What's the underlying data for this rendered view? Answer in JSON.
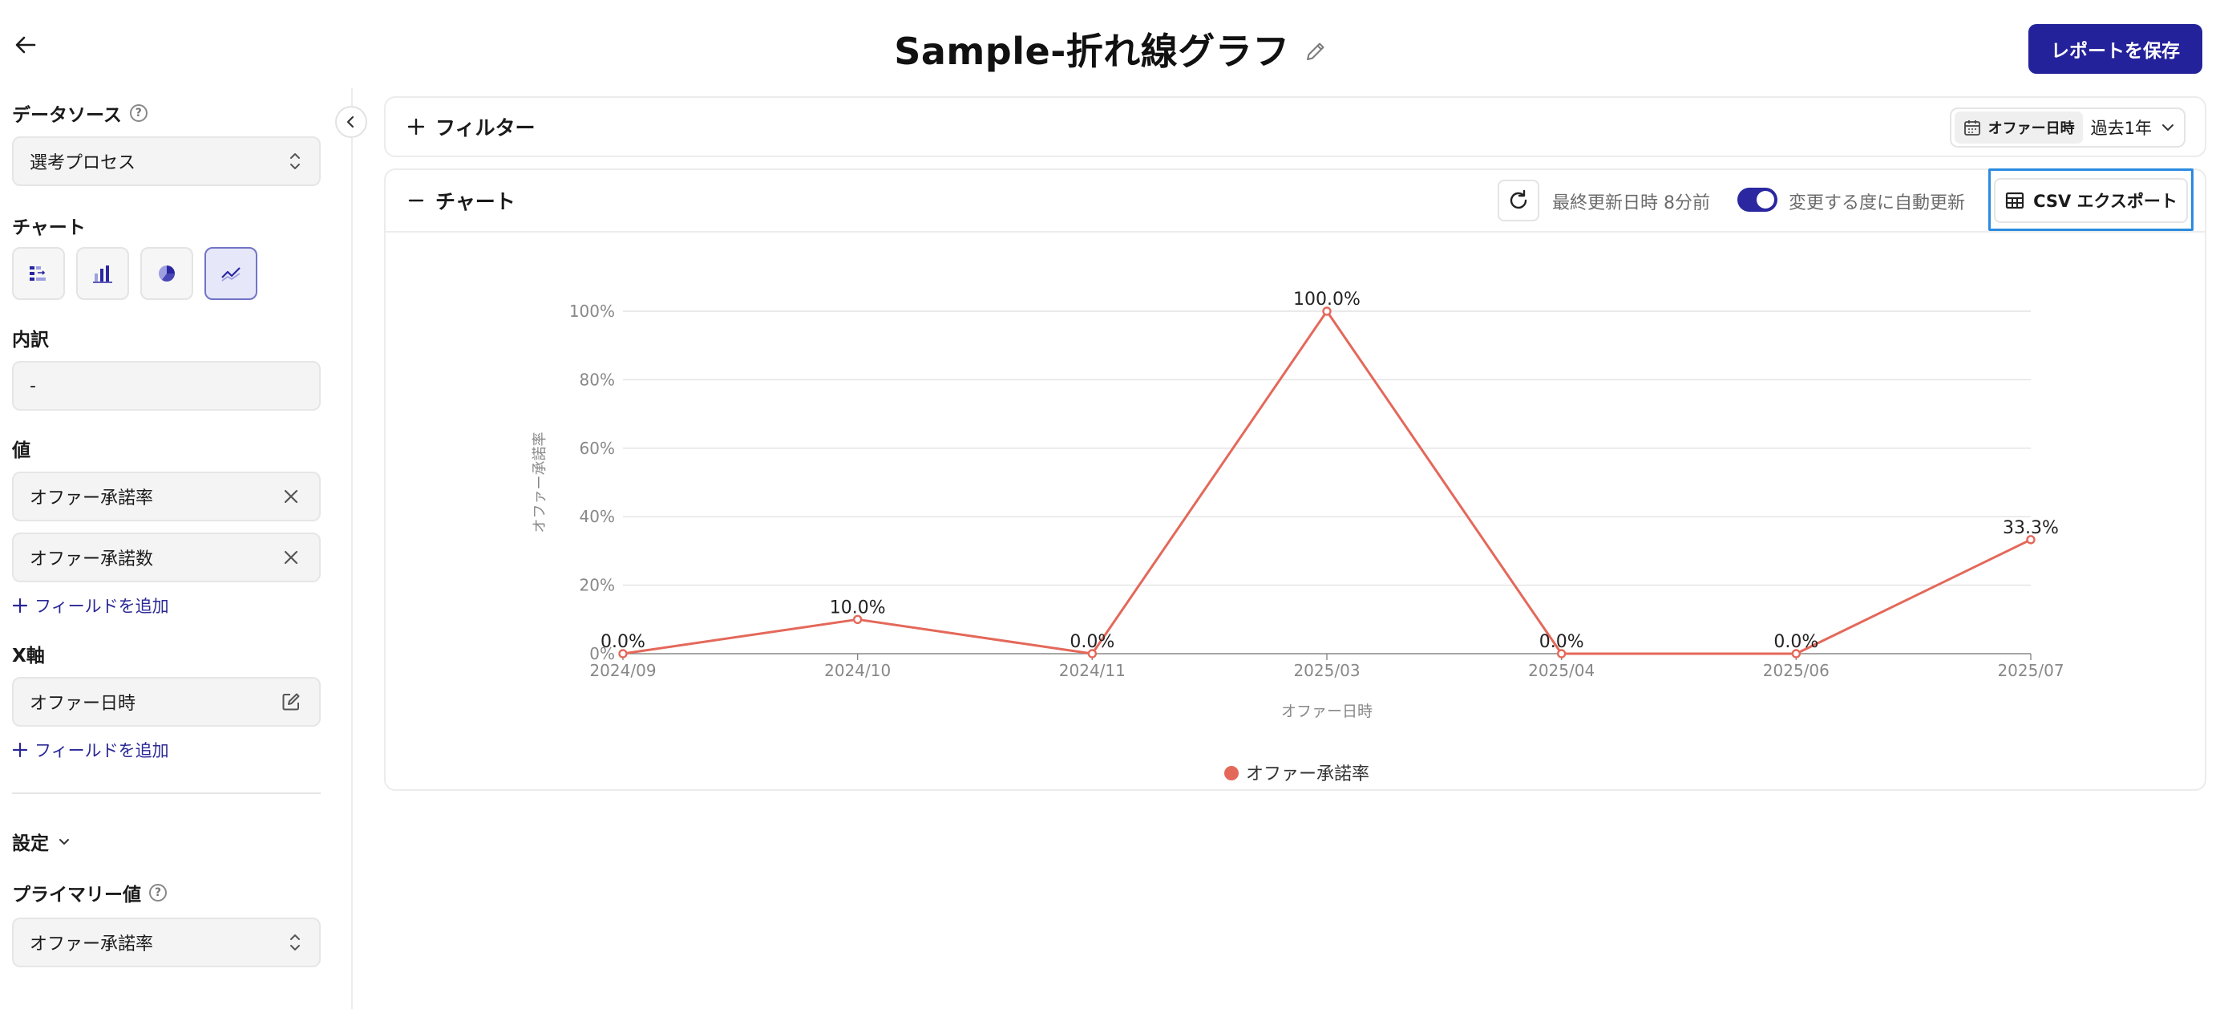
{
  "header": {
    "title": "Sample-折れ線グラフ",
    "save_label": "レポートを保存"
  },
  "sidebar": {
    "datasource_label": "データソース",
    "datasource_value": "選考プロセス",
    "chart_label": "チャート",
    "chart_types": [
      "table-chart",
      "bar-chart",
      "pie-chart",
      "line-chart"
    ],
    "active_chart_type": "line-chart",
    "breakdown_label": "内訳",
    "breakdown_value": "-",
    "values_label": "値",
    "values": [
      "オファー承諾率",
      "オファー承諾数"
    ],
    "add_field_label": "フィールドを追加",
    "xaxis_label": "X軸",
    "xaxis_value": "オファー日時",
    "settings_label": "設定",
    "primary_label": "プライマリー値",
    "primary_value": "オファー承諾率"
  },
  "filter": {
    "toggle_label": "フィルター",
    "date_field": "オファー日時",
    "date_range": "過去1年"
  },
  "chart_panel": {
    "toggle_label": "チャート",
    "last_updated": "最終更新日時 8分前",
    "auto_update": "変更する度に自動更新",
    "auto_update_on": true,
    "csv_label": "CSV エクスポート"
  },
  "colors": {
    "series": "#e4685a",
    "primary": "#24229a",
    "focus": "#2b8be0"
  },
  "chart_data": {
    "type": "line",
    "categories": [
      "2024/09",
      "2024/10",
      "2024/11",
      "2025/03",
      "2025/04",
      "2025/06",
      "2025/07"
    ],
    "series": [
      {
        "name": "オファー承諾率",
        "values": [
          0,
          10,
          0,
          100,
          0,
          0,
          33.3
        ]
      }
    ],
    "data_labels": [
      "0.0%",
      "10.0%",
      "0.0%",
      "100.0%",
      "0.0%",
      "0.0%",
      "33.3%"
    ],
    "y_ticks": [
      "0%",
      "20%",
      "40%",
      "60%",
      "80%",
      "100%"
    ],
    "ylim": [
      0,
      100
    ],
    "xlabel": "オファー日時",
    "ylabel": "オファー承諾率",
    "grid": true,
    "legend": "bottom-center"
  }
}
